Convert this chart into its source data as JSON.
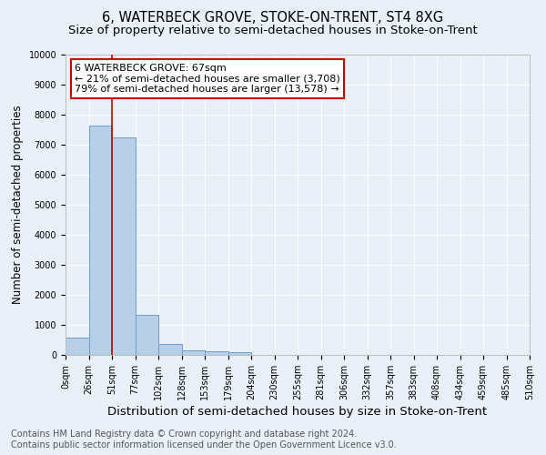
{
  "title": "6, WATERBECK GROVE, STOKE-ON-TRENT, ST4 8XG",
  "subtitle": "Size of property relative to semi-detached houses in Stoke-on-Trent",
  "xlabel": "Distribution of semi-detached houses by size in Stoke-on-Trent",
  "ylabel": "Number of semi-detached properties",
  "bin_labels": [
    "0sqm",
    "26sqm",
    "51sqm",
    "77sqm",
    "102sqm",
    "128sqm",
    "153sqm",
    "179sqm",
    "204sqm",
    "230sqm",
    "255sqm",
    "281sqm",
    "306sqm",
    "332sqm",
    "357sqm",
    "383sqm",
    "408sqm",
    "434sqm",
    "459sqm",
    "485sqm",
    "510sqm"
  ],
  "bar_values": [
    580,
    7650,
    7250,
    1330,
    350,
    155,
    120,
    95,
    0,
    0,
    0,
    0,
    0,
    0,
    0,
    0,
    0,
    0,
    0,
    0
  ],
  "bar_color": "#b8cfe8",
  "bar_edge_color": "#6a9fd0",
  "annotation_text": "6 WATERBECK GROVE: 67sqm\n← 21% of semi-detached houses are smaller (3,708)\n79% of semi-detached houses are larger (13,578) →",
  "annotation_box_color": "#ffffff",
  "annotation_box_edge_color": "#cc0000",
  "vline_color": "#cc0000",
  "vline_x": 2,
  "ylim": [
    0,
    10000
  ],
  "yticks": [
    0,
    1000,
    2000,
    3000,
    4000,
    5000,
    6000,
    7000,
    8000,
    9000,
    10000
  ],
  "footer_line1": "Contains HM Land Registry data © Crown copyright and database right 2024.",
  "footer_line2": "Contains public sector information licensed under the Open Government Licence v3.0.",
  "bg_color": "#eaf0f8",
  "plot_bg_color": "#eaf0f8",
  "grid_color": "#ffffff",
  "title_fontsize": 10.5,
  "subtitle_fontsize": 9.5,
  "xlabel_fontsize": 9.5,
  "ylabel_fontsize": 8.5,
  "tick_fontsize": 7,
  "annotation_fontsize": 8,
  "footer_fontsize": 7
}
